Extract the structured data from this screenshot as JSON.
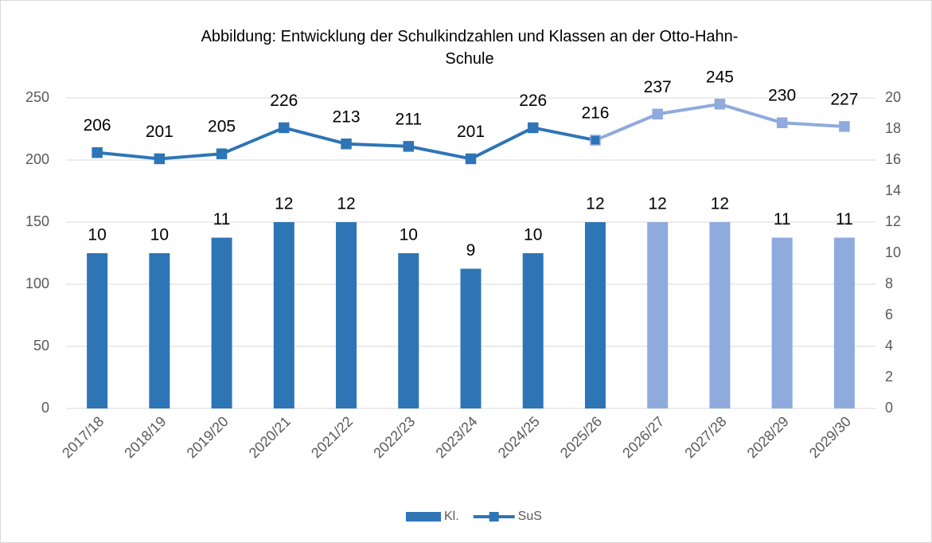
{
  "chart_data": {
    "type": "combo",
    "title": "Abbildung: Entwicklung der Schulkindzahlen und Klassen an der Otto-Hahn-Schule",
    "categories": [
      "2017/18",
      "2018/19",
      "2019/20",
      "2020/21",
      "2021/22",
      "2022/23",
      "2023/24",
      "2024/25",
      "2025/26",
      "2026/27",
      "2027/28",
      "2028/29",
      "2029/30"
    ],
    "series": [
      {
        "name": "Kl.",
        "type": "bar",
        "axis": "y2",
        "color": "#2e75b6",
        "point_colors": [
          "#2e75b6",
          "#2e75b6",
          "#2e75b6",
          "#2e75b6",
          "#2e75b6",
          "#2e75b6",
          "#2e75b6",
          "#2e75b6",
          "#2e75b6",
          "#8faadc",
          "#8faadc",
          "#8faadc",
          "#8faadc"
        ],
        "values": [
          10,
          10,
          11,
          12,
          12,
          10,
          9,
          10,
          12,
          12,
          12,
          11,
          11
        ]
      },
      {
        "name": "SuS",
        "type": "line",
        "axis": "y",
        "color": "#2e75b6",
        "point_colors": [
          "#2e75b6",
          "#2e75b6",
          "#2e75b6",
          "#2e75b6",
          "#2e75b6",
          "#2e75b6",
          "#2e75b6",
          "#2e75b6",
          "#2e75b6",
          "#8faadc",
          "#8faadc",
          "#8faadc",
          "#8faadc"
        ],
        "values": [
          206,
          201,
          205,
          226,
          213,
          211,
          201,
          226,
          216,
          237,
          245,
          230,
          227
        ]
      }
    ],
    "ylim": [
      0,
      250
    ],
    "yticks": [
      0,
      50,
      100,
      150,
      200,
      250
    ],
    "y2lim": [
      0,
      20
    ],
    "y2ticks": [
      0,
      2,
      4,
      6,
      8,
      10,
      12,
      14,
      16,
      18,
      20
    ],
    "grid": true,
    "legend": "bottom"
  }
}
